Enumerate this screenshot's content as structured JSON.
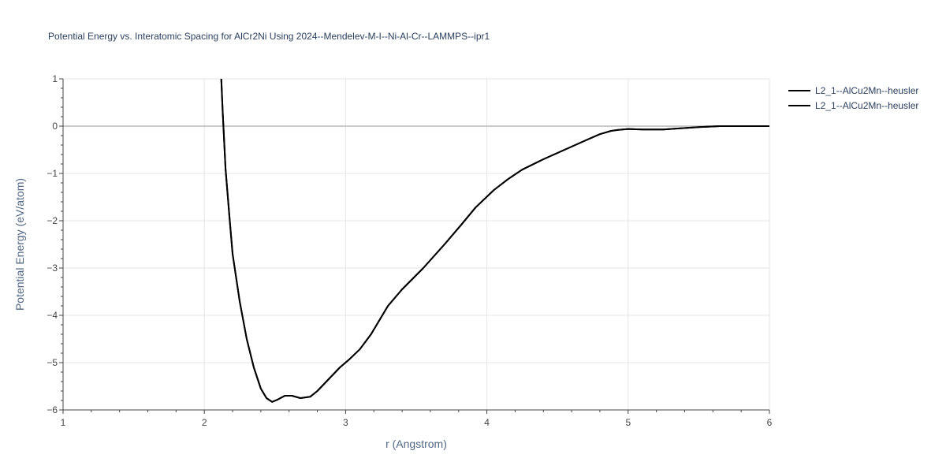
{
  "chart_data": {
    "type": "line",
    "title": "Potential Energy vs. Interatomic Spacing for AlCr2Ni Using 2024--Mendelev-M-I--Ni-Al-Cr--LAMMPS--ipr1",
    "xlabel": "r (Angstrom)",
    "ylabel": "Potential Energy (eV/atom)",
    "xlim": [
      1,
      6
    ],
    "ylim": [
      -6,
      1
    ],
    "x_ticks": [
      1,
      2,
      3,
      4,
      5,
      6
    ],
    "x_tick_labels": [
      "1",
      "2",
      "3",
      "4",
      "5",
      "6"
    ],
    "y_ticks": [
      1,
      0,
      -1,
      -2,
      -3,
      -4,
      -5,
      -6
    ],
    "y_tick_labels": [
      "1",
      "0",
      "−1",
      "−2",
      "−3",
      "−4",
      "−5",
      "−6"
    ],
    "grid": true,
    "legend_position": "top-right",
    "series": [
      {
        "name": "L2_1--AlCu2Mn--heusler",
        "color": "#000000",
        "x": [
          2.12,
          2.13,
          2.15,
          2.18,
          2.2,
          2.25,
          2.3,
          2.35,
          2.4,
          2.44,
          2.48,
          2.52,
          2.57,
          2.62,
          2.68,
          2.75,
          2.8,
          2.88,
          2.96,
          3.03,
          3.1,
          3.18,
          3.3,
          3.4,
          3.55,
          3.7,
          3.82,
          3.92,
          4.05,
          4.15,
          4.25,
          4.4,
          4.55,
          4.7,
          4.8,
          4.88,
          4.93,
          5.0,
          5.1,
          5.25,
          5.35,
          5.5,
          5.65,
          5.8,
          6.0
        ],
        "y": [
          1.0,
          0.3,
          -0.9,
          -2.0,
          -2.7,
          -3.7,
          -4.5,
          -5.1,
          -5.55,
          -5.75,
          -5.83,
          -5.78,
          -5.7,
          -5.7,
          -5.75,
          -5.72,
          -5.6,
          -5.35,
          -5.1,
          -4.92,
          -4.72,
          -4.4,
          -3.8,
          -3.45,
          -3.0,
          -2.5,
          -2.08,
          -1.72,
          -1.35,
          -1.12,
          -0.92,
          -0.7,
          -0.5,
          -0.3,
          -0.17,
          -0.1,
          -0.08,
          -0.06,
          -0.07,
          -0.07,
          -0.05,
          -0.02,
          0.0,
          0.0,
          0.0
        ]
      },
      {
        "name": "L2_1--AlCu2Mn--heusler",
        "color": "#000000",
        "x": [
          2.12,
          2.13,
          2.15,
          2.18,
          2.2,
          2.25,
          2.3,
          2.35,
          2.4,
          2.44,
          2.48,
          2.52,
          2.57,
          2.62,
          2.68,
          2.75,
          2.8,
          2.88,
          2.96,
          3.03,
          3.1,
          3.18,
          3.3,
          3.4,
          3.55,
          3.7,
          3.82,
          3.92,
          4.05,
          4.15,
          4.25,
          4.4,
          4.55,
          4.7,
          4.8,
          4.88,
          4.93,
          5.0,
          5.1,
          5.25,
          5.35,
          5.5,
          5.65,
          5.8,
          6.0
        ],
        "y": [
          1.0,
          0.3,
          -0.9,
          -2.0,
          -2.7,
          -3.7,
          -4.5,
          -5.1,
          -5.55,
          -5.75,
          -5.83,
          -5.78,
          -5.7,
          -5.7,
          -5.75,
          -5.72,
          -5.6,
          -5.35,
          -5.1,
          -4.92,
          -4.72,
          -4.4,
          -3.8,
          -3.45,
          -3.0,
          -2.5,
          -2.08,
          -1.72,
          -1.35,
          -1.12,
          -0.92,
          -0.7,
          -0.5,
          -0.3,
          -0.17,
          -0.1,
          -0.08,
          -0.06,
          -0.07,
          -0.07,
          -0.05,
          -0.02,
          0.0,
          0.0,
          0.0
        ]
      }
    ]
  }
}
